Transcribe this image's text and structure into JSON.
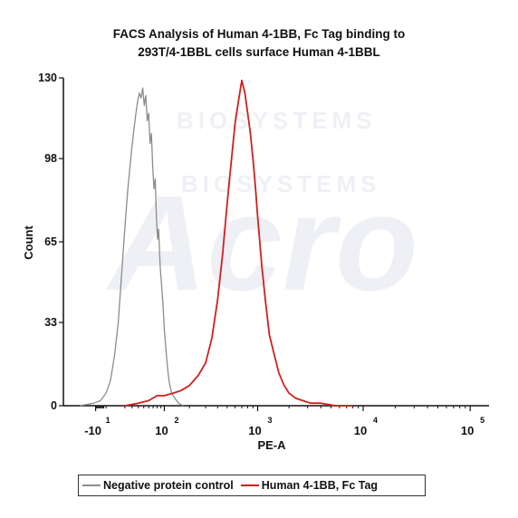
{
  "chart_data": {
    "type": "line",
    "title_line_1": "FACS Analysis of  Human 4-1BB, Fc Tag binding to",
    "title_line_2": "293T/4-1BBL cells surface Human 4-1BBL",
    "xlabel": "PE-A",
    "ylabel": "Count",
    "ylim": [
      0,
      130
    ],
    "yticks": [
      "0",
      "33",
      "65",
      "98",
      "130"
    ],
    "ytick_values": [
      0,
      33,
      65,
      98,
      130
    ],
    "xticks": [
      {
        "base": "-10",
        "exp": "1",
        "value": -10
      },
      {
        "base": "10",
        "exp": "2",
        "value": 100
      },
      {
        "base": "10",
        "exp": "3",
        "value": 1000
      },
      {
        "base": "10",
        "exp": "4",
        "value": 10000
      },
      {
        "base": "10",
        "exp": "5",
        "value": 100000
      }
    ],
    "x_scale": "biexponential",
    "legend_position": "bottom",
    "grid": false,
    "series": [
      {
        "name": "Negative protein control",
        "color": "#8c8c8c",
        "x": [
          -30,
          -12,
          -5,
          0,
          4,
          8,
          12,
          15,
          18,
          21,
          24,
          27,
          30,
          33,
          36,
          39,
          42,
          45,
          48,
          51,
          54,
          57,
          60,
          63,
          66,
          69,
          72,
          75,
          78,
          81,
          84,
          88,
          92,
          96,
          100,
          105,
          110,
          116,
          124,
          135,
          150,
          170
        ],
        "y": [
          0,
          1,
          2,
          5,
          10,
          20,
          33,
          48,
          62,
          75,
          86,
          95,
          103,
          110,
          116,
          121,
          124,
          122,
          126,
          119,
          123,
          113,
          116,
          104,
          108,
          95,
          86,
          90,
          75,
          66,
          70,
          55,
          48,
          40,
          30,
          22,
          15,
          9,
          5,
          3,
          1,
          0
        ]
      },
      {
        "name": "Human 4-1BB, Fc Tag",
        "color": "#d21e1e",
        "x": [
          20,
          40,
          60,
          80,
          100,
          130,
          160,
          200,
          250,
          300,
          350,
          400,
          450,
          500,
          550,
          600,
          650,
          700,
          750,
          800,
          850,
          900,
          950,
          1000,
          1100,
          1200,
          1300,
          1450,
          1600,
          1800,
          2000,
          2300,
          2700,
          3200,
          4000,
          5500,
          8000
        ],
        "y": [
          0,
          1,
          2,
          4,
          4,
          5,
          6,
          8,
          12,
          17,
          27,
          42,
          60,
          80,
          97,
          112,
          121,
          129,
          124,
          116,
          108,
          98,
          87,
          75,
          55,
          40,
          28,
          20,
          13,
          8,
          5,
          3,
          2,
          1,
          1,
          0,
          0
        ]
      }
    ]
  },
  "watermark": {
    "text_1": "BIOSYSTEMS",
    "text_2": "BIOSYSTEMS",
    "logo": "Acro"
  }
}
